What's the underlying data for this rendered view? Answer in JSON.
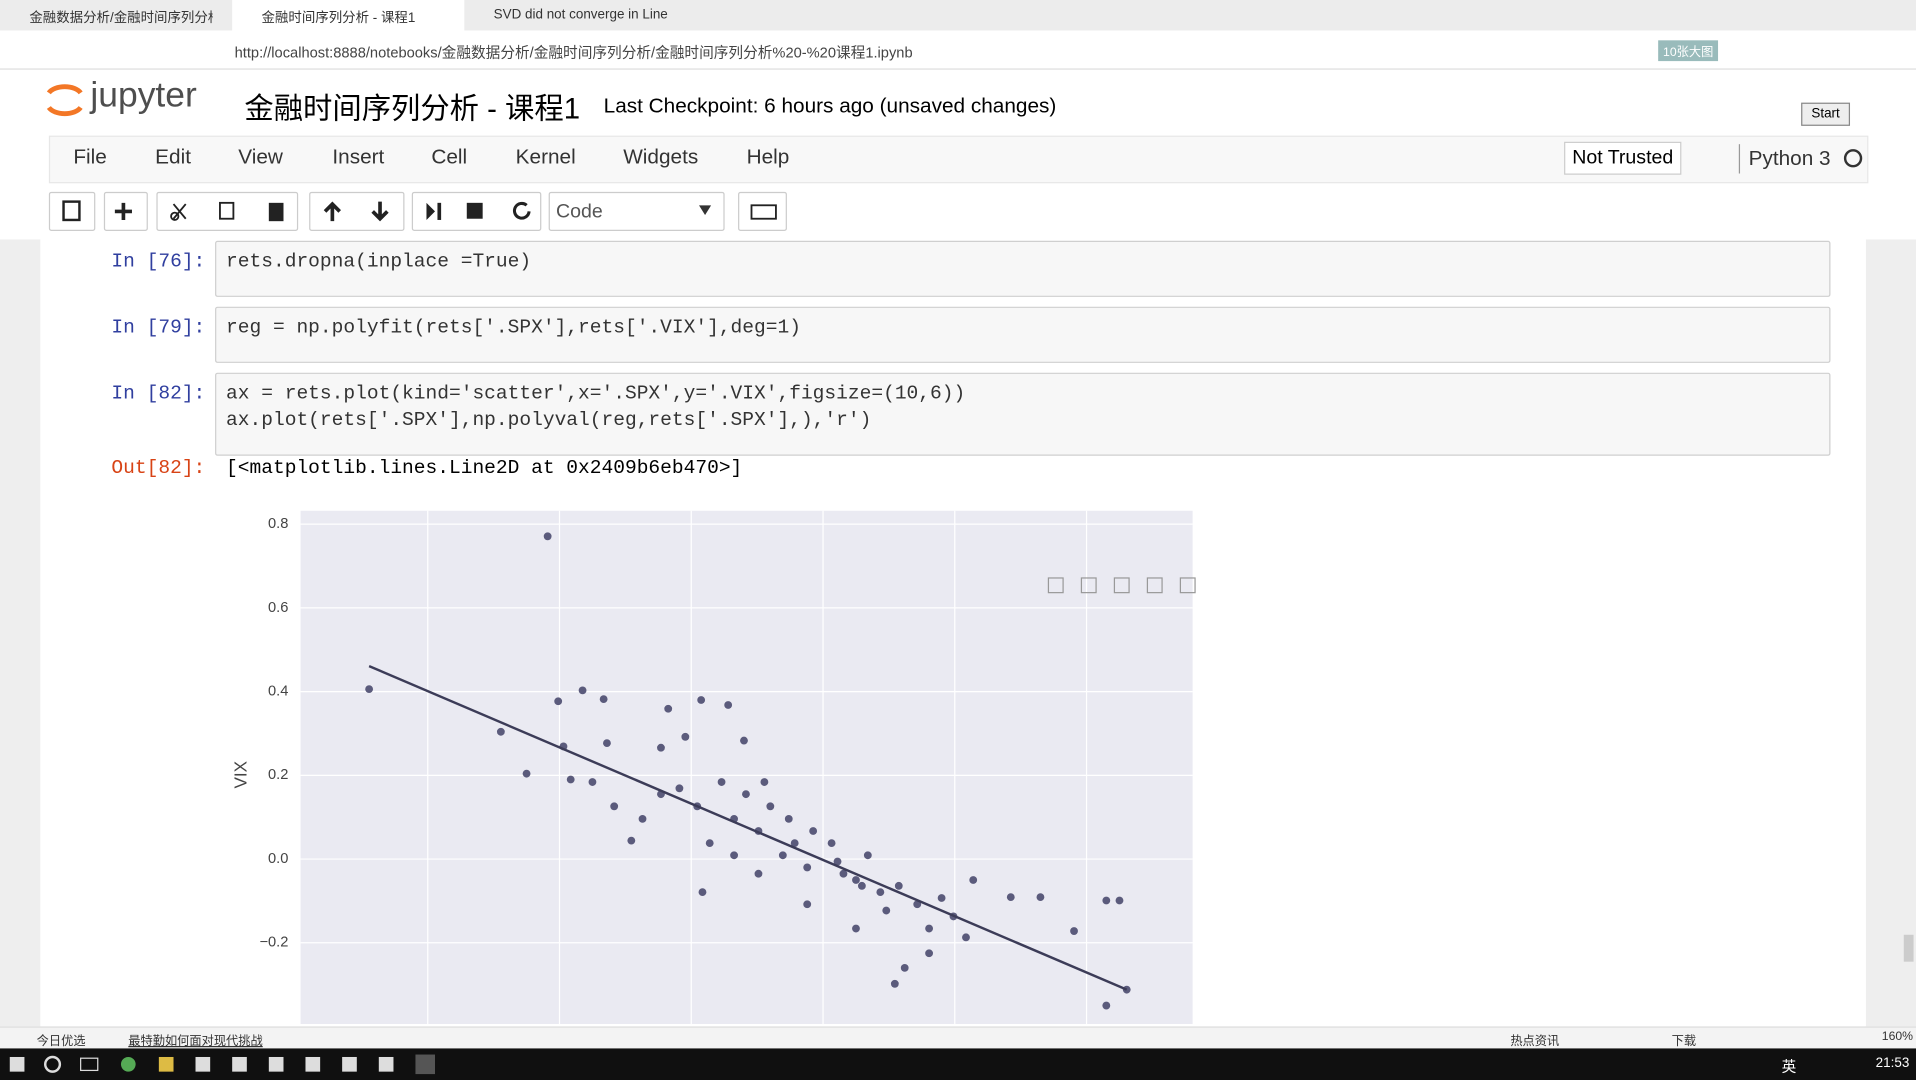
{
  "browser": {
    "tabs": [
      "金融数据分析/金融时间序列分析",
      "金融时间序列分析 - 课程1",
      "SVD did not converge in Line"
    ],
    "url": "http://localhost:8888/notebooks/金融数据分析/金融时间序列分析/金融时间序列分析%20-%20课程1.ipynb",
    "badge": "10张大图"
  },
  "header": {
    "logo": "jupyter",
    "title": "金融时间序列分析 - 课程1",
    "checkpoint": "Last Checkpoint: 6 hours ago (unsaved changes)",
    "start": "Start"
  },
  "menu": [
    "File",
    "Edit",
    "View",
    "Insert",
    "Cell",
    "Kernel",
    "Widgets",
    "Help"
  ],
  "trust": "Not Trusted",
  "kernel": "Python 3",
  "toolbar": {
    "cell_type": "Code"
  },
  "cells": [
    {
      "prompt": "In [76]:",
      "lines": [
        "rets.dropna(inplace =True)"
      ]
    },
    {
      "prompt": "In [79]:",
      "lines": [
        "reg = np.polyfit(rets['.SPX'],rets['.VIX'],deg=1)"
      ]
    },
    {
      "prompt": "In [82]:",
      "lines": [
        "ax = rets.plot(kind='scatter',x='.SPX',y='.VIX',figsize=(10,6))",
        "ax.plot(rets['.SPX'],np.polyval(reg,rets['.SPX'],),'r')"
      ]
    }
  ],
  "output": {
    "prompt": "Out[82]:",
    "text": "[<matplotlib.lines.Line2D at 0x2409b6eb470>]"
  },
  "chart_data": {
    "type": "scatter",
    "ylabel": "VIX",
    "xlim": [
      -0.0793,
      0.0561
    ],
    "xticks": [
      -0.06,
      -0.04,
      -0.02,
      0,
      0.02,
      0.04
    ],
    "ylim": [
      -0.394,
      0.832
    ],
    "yticks": [
      {
        "value": -0.2,
        "label": "−0.2"
      },
      {
        "value": 0,
        "label": "0.0"
      },
      0.2,
      0.4,
      0.6,
      0.8
    ],
    "grid": true,
    "background": "#eaeaf2",
    "series": [
      {
        "type": "scatter",
        "color": "#5b5b7c",
        "x": [
          -0.0418,
          -0.0689,
          -0.0489,
          -0.045,
          -0.0402,
          -0.0365,
          -0.0333,
          -0.0383,
          -0.035,
          -0.0394,
          -0.0328,
          -0.0235,
          -0.0185,
          -0.0144,
          -0.012,
          -0.0209,
          -0.0246,
          -0.0291,
          -0.0317,
          -0.0183,
          0.043,
          0.045,
          0.043,
          0.0461,
          0.0381,
          0.033,
          0.0285,
          0.0109,
          0.0124,
          0.0161,
          0.0217,
          0.0228,
          0.0198,
          0.005,
          -0.0043,
          -0.0098,
          -0.0135,
          -0.0061,
          -0.0024,
          0.0013,
          0.0087,
          0.0143,
          -0.0154,
          -0.0117,
          -0.008,
          -0.0191,
          -0.0218,
          0.0031,
          0.0068,
          0.0115,
          0.018,
          -0.0135,
          -0.0098,
          -0.0024,
          0.005,
          -0.0089,
          -0.0052,
          -0.0015,
          0.0022,
          0.0059,
          0.0096,
          -0.0172,
          0.0161,
          -0.0246,
          -0.0274
        ],
        "values": [
          0.771,
          0.406,
          0.304,
          0.204,
          0.377,
          0.403,
          0.382,
          0.19,
          0.184,
          0.269,
          0.277,
          0.359,
          0.38,
          0.368,
          0.283,
          0.292,
          0.266,
          0.044,
          0.126,
          -0.079,
          -0.099,
          -0.099,
          -0.35,
          -0.312,
          -0.172,
          -0.091,
          -0.091,
          -0.298,
          -0.26,
          -0.225,
          -0.187,
          -0.05,
          -0.137,
          -0.05,
          0.038,
          0.067,
          0.096,
          0.009,
          -0.02,
          0.038,
          -0.079,
          -0.108,
          0.184,
          0.155,
          0.126,
          0.126,
          0.169,
          -0.035,
          0.009,
          -0.064,
          -0.093,
          0.009,
          -0.035,
          -0.108,
          -0.166,
          0.184,
          0.096,
          0.067,
          -0.006,
          -0.064,
          -0.123,
          0.038,
          -0.166,
          0.155,
          0.096
        ]
      },
      {
        "type": "line",
        "color": "#3c3c58",
        "x": [
          -0.0689,
          0.0461
        ],
        "values": [
          0.461,
          -0.312
        ]
      }
    ]
  },
  "status": {
    "left": [
      "今日优选",
      "最特勤如何面对现代挑战"
    ],
    "right": [
      "热点资讯",
      "下载",
      "160%"
    ]
  },
  "taskbar": {
    "lang": "英",
    "time": "21:53"
  }
}
